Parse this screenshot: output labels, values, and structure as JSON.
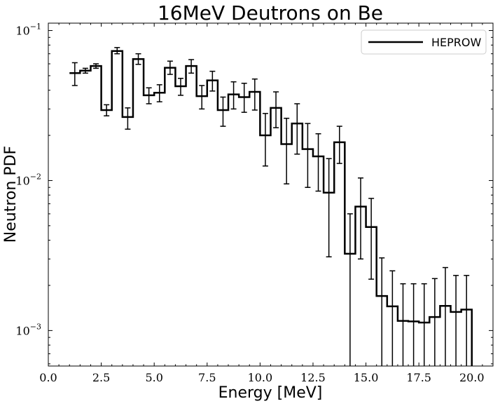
{
  "chart_data": {
    "type": "line",
    "step": "mid",
    "title": "16MeV Deutrons on Be",
    "xlabel": "Energy [MeV]",
    "ylabel": "Neutron PDF",
    "xlim": [
      0,
      21
    ],
    "ylim": [
      0.00058,
      0.112
    ],
    "yscale": "log",
    "x_ticks": [
      0.0,
      2.5,
      5.0,
      7.5,
      10.0,
      12.5,
      15.0,
      17.5,
      20.0
    ],
    "x_tick_labels": [
      "0.0",
      "2.5",
      "5.0",
      "7.5",
      "10.0",
      "12.5",
      "15.0",
      "17.5",
      "20.0"
    ],
    "y_ticks": [
      0.001,
      0.01,
      0.1
    ],
    "y_tick_labels": [
      {
        "base": "10",
        "exp": "−3"
      },
      {
        "base": "10",
        "exp": "−2"
      },
      {
        "base": "10",
        "exp": "−1"
      }
    ],
    "grid": false,
    "legend_position": "top-right",
    "series": [
      {
        "name": "HEPROW",
        "color": "#000000",
        "x": [
          1.25,
          1.75,
          2.25,
          2.75,
          3.25,
          3.75,
          4.25,
          4.75,
          5.25,
          5.75,
          6.25,
          6.75,
          7.25,
          7.75,
          8.25,
          8.75,
          9.25,
          9.75,
          10.25,
          10.75,
          11.25,
          11.75,
          12.25,
          12.75,
          13.25,
          13.75,
          14.25,
          14.75,
          15.25,
          15.75,
          16.25,
          16.75,
          17.25,
          17.75,
          18.25,
          18.75,
          19.25,
          19.75
        ],
        "y": [
          0.052,
          0.054,
          0.058,
          0.0295,
          0.073,
          0.0265,
          0.0645,
          0.037,
          0.0385,
          0.0565,
          0.0425,
          0.058,
          0.0365,
          0.0465,
          0.0295,
          0.0375,
          0.036,
          0.039,
          0.02,
          0.0305,
          0.0175,
          0.024,
          0.0162,
          0.0145,
          0.0083,
          0.018,
          0.00325,
          0.0067,
          0.0049,
          0.0017,
          0.00145,
          0.00116,
          0.00115,
          0.00113,
          0.00123,
          0.00146,
          0.00133,
          0.00138
        ],
        "y_low": [
          0.043,
          0.052,
          0.056,
          0.027,
          0.07,
          0.022,
          0.0595,
          0.0325,
          0.0335,
          0.051,
          0.037,
          0.052,
          0.03,
          0.0395,
          0.023,
          0.03,
          0.0285,
          0.0295,
          0.0125,
          0.0225,
          0.0095,
          0.015,
          0.009,
          0.0085,
          0.0031,
          0.013,
          0.00058,
          0.003,
          0.0022,
          0.00058,
          0.00058,
          0.00058,
          0.00058,
          0.00058,
          0.00058,
          0.00058,
          0.00058,
          0.00058
        ],
        "y_high": [
          0.061,
          0.056,
          0.06,
          0.032,
          0.077,
          0.0305,
          0.07,
          0.0415,
          0.0435,
          0.0625,
          0.048,
          0.064,
          0.043,
          0.0535,
          0.036,
          0.0455,
          0.0445,
          0.0475,
          0.028,
          0.039,
          0.026,
          0.0325,
          0.024,
          0.0205,
          0.014,
          0.023,
          0.006,
          0.0104,
          0.0076,
          0.00305,
          0.0025,
          0.00205,
          0.00205,
          0.00205,
          0.00222,
          0.00263,
          0.00233,
          0.00233
        ]
      }
    ]
  }
}
